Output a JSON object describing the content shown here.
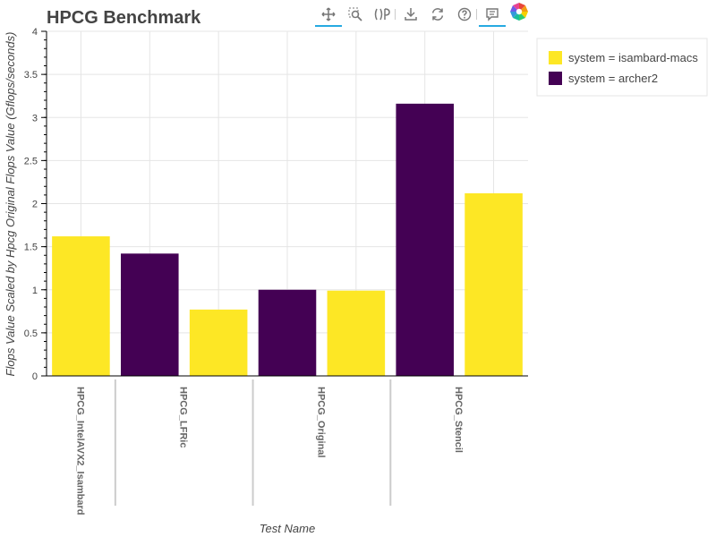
{
  "chart_data": {
    "type": "bar",
    "title": "HPCG Benchmark",
    "xlabel": "Test Name",
    "ylabel": "Flops Value Scaled by Hpcg Original Flops Value (Gflops/seconds)",
    "ylim": [
      0,
      4
    ],
    "yticks": [
      "0",
      "0.5",
      "1",
      "1.5",
      "2",
      "2.5",
      "3",
      "3.5",
      "4"
    ],
    "grid": true,
    "legend_placement": "right",
    "categories": [
      "HPCG_IntelAVX2_Isambard",
      "HPCG_LFRic",
      "HPCG_Original",
      "HPCG_Stencil"
    ],
    "series": [
      {
        "name": "system = isambard-macs",
        "color": "#fde725",
        "values": [
          1.62,
          0.77,
          0.99,
          2.12
        ]
      },
      {
        "name": "system = archer2",
        "color": "#440154",
        "values": [
          null,
          1.42,
          1.0,
          3.16
        ]
      }
    ]
  },
  "toolbar": {
    "tools": [
      "pan-icon",
      "box-zoom-icon",
      "wheel-zoom-icon",
      "save-icon",
      "reset-icon",
      "help-icon",
      "hover-icon",
      "bokeh-logo"
    ]
  }
}
